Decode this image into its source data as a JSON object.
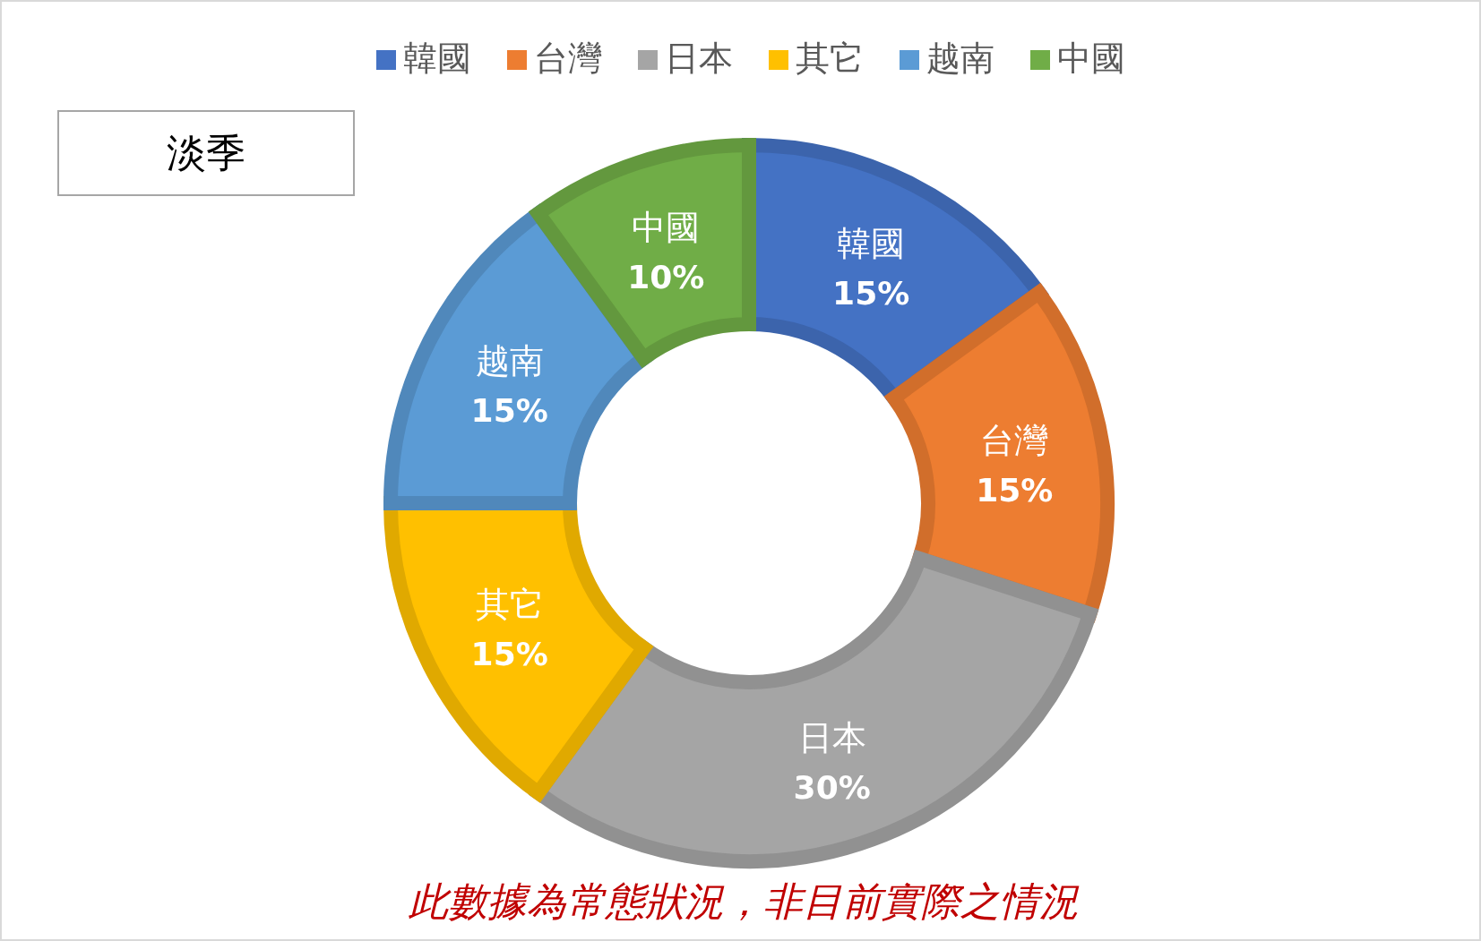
{
  "chart_data": {
    "type": "donut",
    "title": "淡季",
    "categories": [
      "韓國",
      "台灣",
      "日本",
      "其它",
      "越南",
      "中國"
    ],
    "values": [
      15,
      15,
      30,
      15,
      15,
      10
    ],
    "colors": [
      "#4472c4",
      "#ed7d31",
      "#a5a5a5",
      "#ffc000",
      "#5b9bd5",
      "#70ad47"
    ],
    "value_labels": [
      "15%",
      "15%",
      "30%",
      "15%",
      "15%",
      "10%"
    ],
    "legend": "top",
    "annotations": [
      "此數據為常態狀況，非目前實際之情況"
    ]
  }
}
